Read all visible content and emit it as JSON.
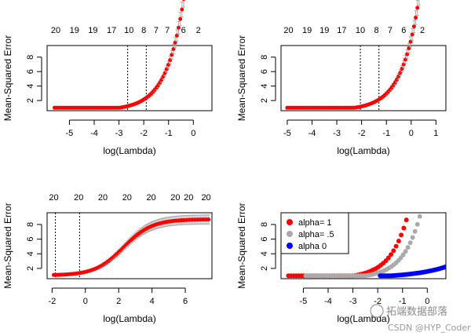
{
  "chart_data": [
    {
      "type": "scatter",
      "xlabel": "log(Lambda)",
      "ylabel": "Mean-Squared Error",
      "xlim": [
        -5.9,
        0.75
      ],
      "ylim": [
        0.6,
        9.6
      ],
      "xticks": [
        "-5",
        "-4",
        "-3",
        "-2",
        "-1",
        "0"
      ],
      "xtick_values": [
        -5,
        -4,
        -3,
        -2,
        -1,
        0
      ],
      "yticks": [
        "2",
        "4",
        "6",
        "8"
      ],
      "ytick_values": [
        2,
        4,
        6,
        8
      ],
      "top_axis_labels": [
        "20",
        "19",
        "19",
        "17",
        "10",
        "8",
        "7",
        "7",
        "6",
        "2"
      ],
      "top_axis_positions": [
        -5.55,
        -4.8,
        -4.05,
        -3.3,
        -2.6,
        -2.0,
        -1.5,
        -1.05,
        -0.4,
        0.2
      ],
      "vlines": [
        -2.65,
        -1.9
      ],
      "curve": {
        "x_start": -5.6,
        "x_end": 0.5,
        "base": 1.0,
        "knee": -3.0,
        "growth": 1.45,
        "slope": 0.35
      },
      "point_count": 90,
      "point_color": "#ff0000",
      "errorbar_color": "#aaaaaa",
      "series": []
    },
    {
      "type": "scatter",
      "xlabel": "log(Lambda)",
      "ylabel": "Mean-Squared Error",
      "xlim": [
        -5.25,
        1.4
      ],
      "ylim": [
        0.6,
        9.6
      ],
      "xticks": [
        "-5",
        "-4",
        "-3",
        "-2",
        "-1",
        "0",
        "1"
      ],
      "xtick_values": [
        -5,
        -4,
        -3,
        -2,
        -1,
        0,
        1
      ],
      "yticks": [
        "2",
        "4",
        "6",
        "8"
      ],
      "ytick_values": [
        2,
        4,
        6,
        8
      ],
      "top_axis_labels": [
        "20",
        "19",
        "19",
        "17",
        "10",
        "8",
        "7",
        "6",
        "2"
      ],
      "top_axis_positions": [
        -4.95,
        -4.2,
        -3.5,
        -2.8,
        -2.05,
        -1.4,
        -0.85,
        -0.3,
        0.45
      ],
      "vlines": [
        -2.05,
        -1.3
      ],
      "curve": {
        "x_start": -5.0,
        "x_end": 1.15,
        "base": 1.0,
        "knee": -2.3,
        "growth": 1.45,
        "slope": 0.35
      },
      "point_count": 90,
      "point_color": "#ff0000",
      "errorbar_color": "#aaaaaa",
      "series": []
    },
    {
      "type": "scatter",
      "xlabel": "log(Lambda)",
      "ylabel": "Mean-Squared Error",
      "xlim": [
        -2.3,
        7.6
      ],
      "ylim": [
        0.6,
        9.6
      ],
      "xticks": [
        "-2",
        "0",
        "2",
        "4",
        "6"
      ],
      "xtick_values": [
        -2,
        0,
        2,
        4,
        6
      ],
      "yticks": [
        "2",
        "4",
        "6",
        "8"
      ],
      "ytick_values": [
        2,
        4,
        6,
        8
      ],
      "top_axis_labels": [
        "20",
        "20",
        "20",
        "20",
        "20",
        "20",
        "20",
        "20"
      ],
      "top_axis_positions": [
        -1.9,
        -0.4,
        1.05,
        2.5,
        3.95,
        5.4,
        6.2,
        7.25
      ],
      "vlines": [
        -1.8,
        -0.35
      ],
      "curve": {
        "x_start": -1.9,
        "x_end": 7.4,
        "sigmoid": true,
        "low": 1.05,
        "high": 8.7,
        "center": 2.3,
        "scale": 0.85
      },
      "point_count": 100,
      "point_color": "#ff0000",
      "errorbar_color": "#aaaaaa",
      "series": []
    },
    {
      "type": "scatter",
      "xlabel": "log(Lambda)",
      "ylabel": "Mean-Squared Error",
      "xlim": [
        -5.9,
        0.75
      ],
      "ylim": [
        0.6,
        9.6
      ],
      "xticks": [
        "-5",
        "-4",
        "-3",
        "-2",
        "-1",
        "0"
      ],
      "xtick_values": [
        -5,
        -4,
        -3,
        -2,
        -1,
        0
      ],
      "yticks": [
        "2",
        "4",
        "6",
        "8"
      ],
      "ytick_values": [
        2,
        4,
        6,
        8
      ],
      "legend": {
        "position": "top-left",
        "entries": [
          {
            "label": "alpha= 1",
            "color": "#ff0000"
          },
          {
            "label": "alpha= .5",
            "color": "#aaaaaa"
          },
          {
            "label": "alpha 0",
            "color": "#0000ff"
          }
        ]
      },
      "series": [
        {
          "name": "alpha= 1",
          "color": "#ff0000",
          "x_start": -5.6,
          "x_end": 0.5,
          "base": 1.0,
          "knee": -3.0,
          "growth": 1.45,
          "slope": 0.35,
          "points": 60
        },
        {
          "name": "alpha= .5",
          "color": "#aaaaaa",
          "x_start": -4.9,
          "x_end": 0.75,
          "base": 1.0,
          "knee": -2.5,
          "growth": 1.45,
          "slope": 0.35,
          "points": 60,
          "x_shift": 0.6
        },
        {
          "name": "alpha 0",
          "color": "#0000ff",
          "x_start": -1.9,
          "x_end": 0.75,
          "base": 1.0,
          "knee": -1.5,
          "growth": 0.75,
          "slope": 0.28,
          "points": 45
        }
      ]
    }
  ],
  "watermark": {
    "line1": "拓端数据部落",
    "line2": "CSDN @HYP_Coder"
  }
}
